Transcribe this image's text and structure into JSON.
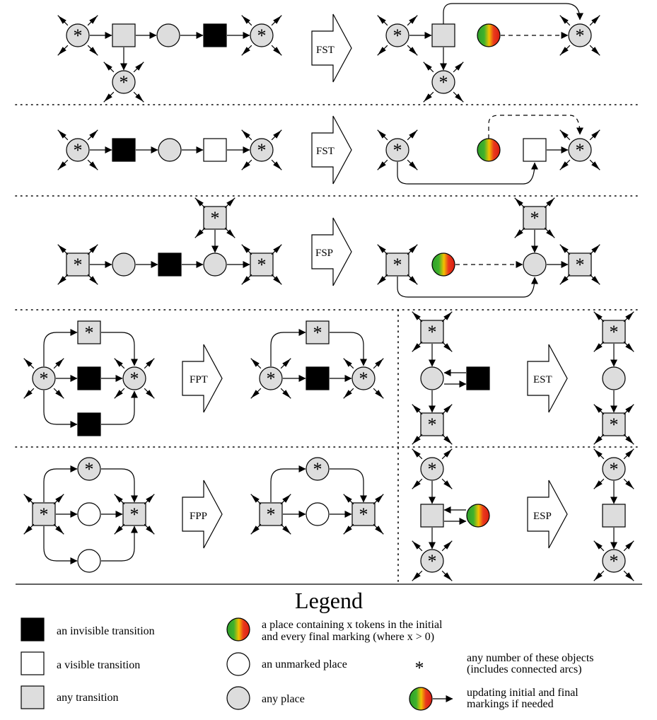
{
  "rules": [
    {
      "label": "FST"
    },
    {
      "label": "FST"
    },
    {
      "label": "FSP"
    },
    {
      "label": "FPT"
    },
    {
      "label": "EST"
    },
    {
      "label": "FPP"
    },
    {
      "label": "ESP"
    }
  ],
  "node_symbol": "*",
  "legend": {
    "title": "Legend",
    "items": [
      {
        "text": "an invisible transition"
      },
      {
        "text": "a visible transition"
      },
      {
        "text": "any transition"
      },
      {
        "line1": "a place containing x tokens in the initial",
        "line2": "and every final marking (where x > 0)"
      },
      {
        "text": "an unmarked place"
      },
      {
        "text": "any place"
      },
      {
        "line1": "any number of these objects",
        "line2": "(includes connected arcs)"
      },
      {
        "line1": "updating initial and final",
        "line2": "markings if needed"
      }
    ]
  },
  "colors": {
    "place_fill": "#dddddd",
    "token_green": "#2fa02a",
    "token_red": "#e0261a",
    "invisible": "#000000",
    "visible": "#ffffff"
  }
}
